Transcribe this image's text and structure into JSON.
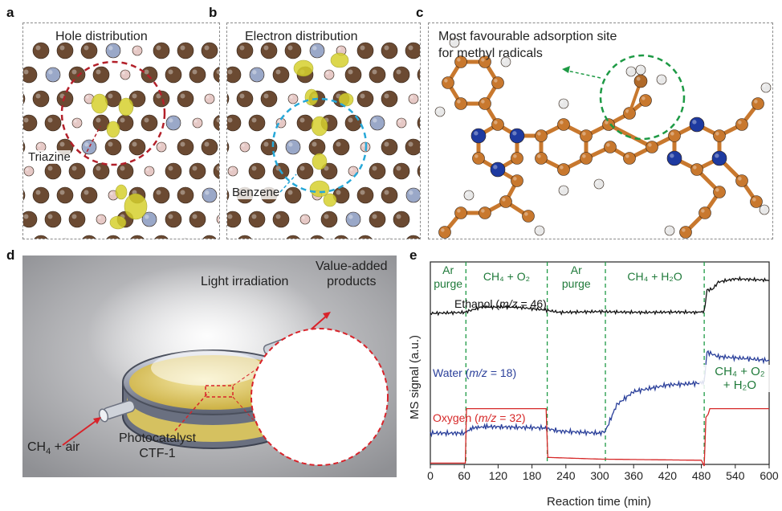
{
  "panels": {
    "a": {
      "letter": "a",
      "title": "Hole distribution",
      "label": "Triazine"
    },
    "b": {
      "letter": "b",
      "title": "Electron distribution",
      "label": "Benzene"
    },
    "c": {
      "letter": "c",
      "title_line1": "Most favourable adsorption site",
      "title_line2": "for methyl radicals"
    },
    "d": {
      "letter": "d",
      "light": "Light irradiation",
      "products_line1": "Value-added",
      "products_line2": "products",
      "inlet_main": "CH",
      "inlet_sub": "4",
      "inlet_rest": " + air",
      "catalyst_line1": "Photocatalyst",
      "catalyst_line2": "CTF-1"
    },
    "e": {
      "letter": "e"
    }
  },
  "colors": {
    "carbon": "#6b4a32",
    "hydrogen": "#e6c9c6",
    "nitrogen": "#9aa8c8",
    "isosurface": "#d6d12e",
    "ctf_carbon": "#c8782e",
    "ctf_nitrogen": "#1e3aa0",
    "red_circle": "#b3202a",
    "blue_circle": "#27a8d8",
    "green_circle": "#1e9a45",
    "ethanol": "#111111",
    "water": "#2a3f9a",
    "oxygen": "#d62828",
    "stage_green": "#1f7a3a"
  },
  "chart_data": {
    "type": "line",
    "xlabel": "Reaction time (min)",
    "ylabel": "MS signal (a.u.)",
    "xlim": [
      0,
      600
    ],
    "xticks": [
      0,
      60,
      120,
      180,
      240,
      300,
      360,
      420,
      480,
      540,
      600
    ],
    "stage_boundaries": [
      63,
      207,
      310,
      485
    ],
    "stages": [
      {
        "line1": "Ar",
        "line2": "purge"
      },
      {
        "line1": "CH₄ + O₂",
        "line2": ""
      },
      {
        "line1": "Ar",
        "line2": "purge"
      },
      {
        "line1": "CH₄ + H₂O",
        "line2": ""
      },
      {
        "line1": "CH₄ + O₂",
        "line2": "+ H₂O"
      }
    ],
    "series": [
      {
        "name": "Ethanol (m/z = 46)",
        "label_pre": "Ethanol (",
        "label_it": "m/z",
        "label_post": " = 46)",
        "x": [
          0,
          60,
          90,
          150,
          200,
          230,
          300,
          330,
          380,
          440,
          470,
          485,
          490,
          500,
          510,
          540,
          600
        ],
        "y": [
          0.18,
          0.2,
          0.32,
          0.32,
          0.26,
          0.2,
          0.22,
          0.21,
          0.2,
          0.21,
          0.2,
          0.22,
          0.7,
          0.72,
          0.88,
          0.95,
          0.92
        ]
      },
      {
        "name": "Water (m/z = 18)",
        "label_pre": "Water (",
        "label_it": "m/z",
        "label_post": " = 18)",
        "x": [
          0,
          60,
          75,
          100,
          200,
          230,
          300,
          310,
          330,
          360,
          420,
          480,
          485,
          490,
          510,
          560,
          600
        ],
        "y": [
          0.12,
          0.12,
          0.2,
          0.22,
          0.2,
          0.15,
          0.12,
          0.15,
          0.55,
          0.75,
          0.85,
          0.88,
          0.9,
          1.35,
          1.28,
          1.25,
          1.22
        ]
      },
      {
        "name": "Oxygen (m/z = 32)",
        "label_pre": "Oxygen (",
        "label_it": "m/z",
        "label_post": " = 32)",
        "x": [
          0,
          62,
          64,
          205,
          208,
          300,
          480,
          485,
          488,
          492,
          495,
          600
        ],
        "y": [
          0.05,
          0.05,
          1.0,
          1.0,
          0.15,
          0.12,
          0.1,
          0.0,
          0.85,
          0.9,
          1.0,
          1.0
        ]
      }
    ]
  }
}
